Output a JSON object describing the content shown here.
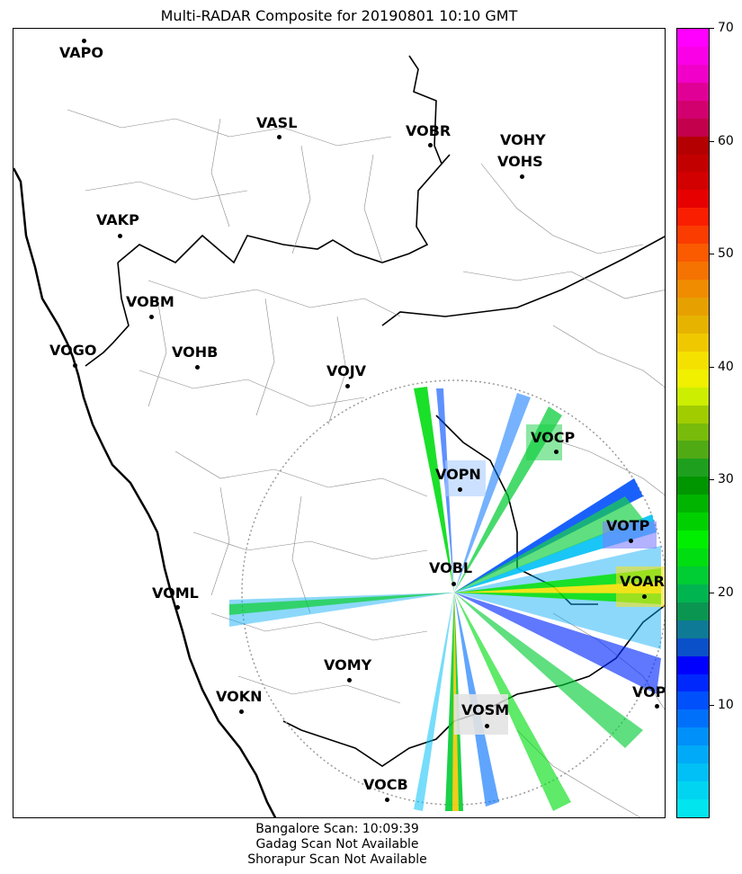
{
  "title": "Multi-RADAR Composite for 20190801 10:10 GMT",
  "stations": [
    {
      "id": "VAPO"
    },
    {
      "id": "VASL"
    },
    {
      "id": "VOBR"
    },
    {
      "id": "VOHY"
    },
    {
      "id": "VOHS"
    },
    {
      "id": "VAKP"
    },
    {
      "id": "VOBM"
    },
    {
      "id": "VOGO"
    },
    {
      "id": "VOHB"
    },
    {
      "id": "VOJV"
    },
    {
      "id": "VOCP"
    },
    {
      "id": "VOPN"
    },
    {
      "id": "VOTP"
    },
    {
      "id": "VOBL"
    },
    {
      "id": "VOAR"
    },
    {
      "id": "VOML"
    },
    {
      "id": "VOMY"
    },
    {
      "id": "VOKN"
    },
    {
      "id": "VOSM"
    },
    {
      "id": "VOPC"
    },
    {
      "id": "VOCB"
    }
  ],
  "colorbar": {
    "min": 0,
    "max": 70,
    "tick_labels": [
      "10",
      "20",
      "30",
      "40",
      "50",
      "60",
      "70"
    ],
    "colors": [
      "#00e5ee",
      "#00d4f0",
      "#00c0f5",
      "#00aaf8",
      "#0090fa",
      "#0070fb",
      "#0050fc",
      "#0028fd",
      "#0000ff",
      "#0a50c8",
      "#0f7a96",
      "#0a9650",
      "#00b450",
      "#00cc33",
      "#00dd11",
      "#00ee00",
      "#00d000",
      "#00b400",
      "#009600",
      "#1ea01e",
      "#50aa14",
      "#78bb0a",
      "#a0cc00",
      "#ccee00",
      "#f0f000",
      "#f5e100",
      "#f0c800",
      "#e6b400",
      "#e6a000",
      "#f08c00",
      "#f57300",
      "#fa5a00",
      "#fa3c00",
      "#fa1e00",
      "#e60000",
      "#d20000",
      "#c30000",
      "#b40000",
      "#c3004b",
      "#d2006e",
      "#e10096",
      "#f000c8",
      "#fa00e6",
      "#ff00ff"
    ]
  },
  "footer": [
    "Bangalore Scan: 10:09:39",
    "Gadag Scan Not Available",
    "Shorapur Scan Not Available"
  ]
}
